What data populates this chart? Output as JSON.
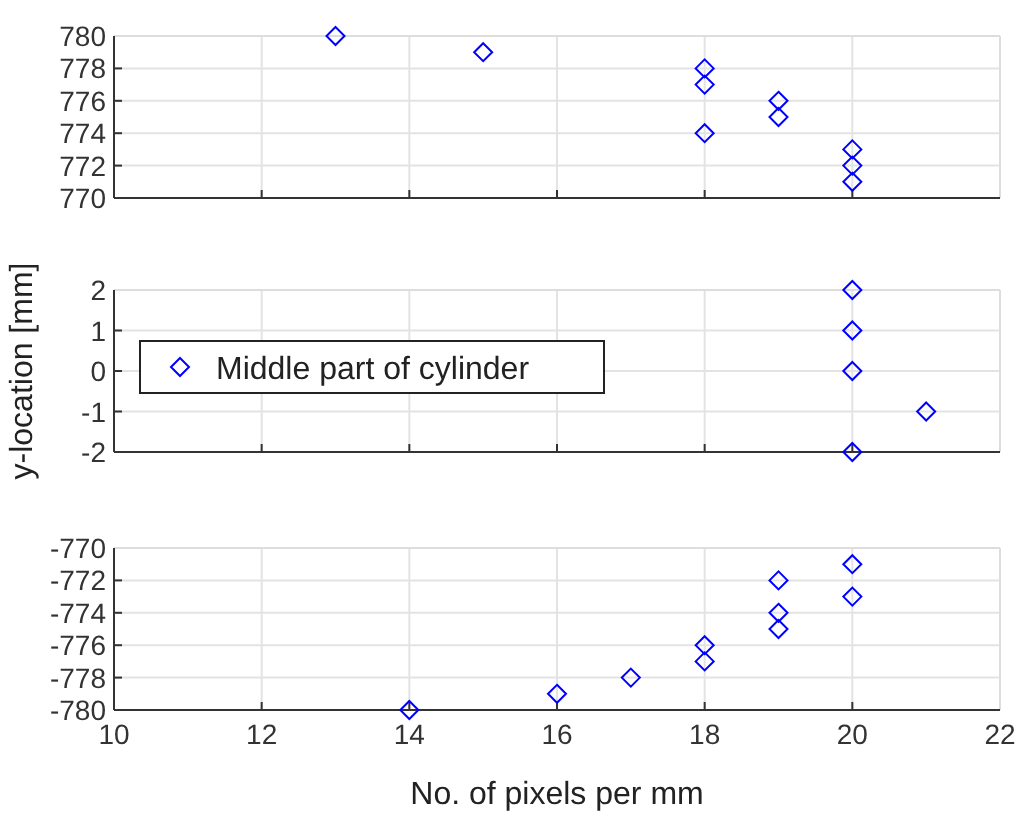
{
  "chart_data": [
    {
      "type": "scatter",
      "x": [
        13,
        15,
        18,
        18,
        18,
        19,
        19,
        20,
        20,
        20
      ],
      "series": [
        {
          "color": "#0000ff",
          "values": [
            780,
            779,
            778,
            777,
            774,
            776,
            775,
            773,
            772,
            771
          ]
        }
      ],
      "xlim": [
        10,
        22
      ],
      "xticks": [
        10,
        12,
        14,
        16,
        18,
        20,
        22
      ],
      "ylim": [
        770,
        780
      ],
      "yticks": [
        770,
        772,
        774,
        776,
        778,
        780
      ],
      "grid": true,
      "marker": "diamond",
      "tick_labels": "y"
    },
    {
      "type": "scatter",
      "x": [
        20,
        20,
        20,
        21,
        20
      ],
      "series": [
        {
          "name": "Middle part of cylinder",
          "color": "#0000ff",
          "values": [
            2,
            1,
            0,
            -1,
            -2
          ]
        }
      ],
      "xlim": [
        10,
        22
      ],
      "xticks": [
        10,
        12,
        14,
        16,
        18,
        20,
        22
      ],
      "ylim": [
        -2,
        2
      ],
      "yticks": [
        -2,
        -1,
        0,
        1,
        2
      ],
      "ylabel": "y-location [mm]",
      "grid": true,
      "marker": "diamond",
      "legend": "left",
      "tick_labels": "y"
    },
    {
      "type": "scatter",
      "x": [
        14,
        16,
        17,
        18,
        18,
        19,
        19,
        19,
        20,
        20
      ],
      "series": [
        {
          "color": "#0000ff",
          "values": [
            -780,
            -779,
            -778,
            -776,
            -777,
            -772,
            -774,
            -775,
            -771,
            -773
          ]
        }
      ],
      "xlim": [
        10,
        22
      ],
      "xticks": [
        10,
        12,
        14,
        16,
        18,
        20,
        22
      ],
      "ylim": [
        -780,
        -770
      ],
      "yticks": [
        -780,
        -778,
        -776,
        -774,
        -772,
        -770
      ],
      "xlabel": "No. of pixels per mm",
      "grid": true,
      "marker": "diamond"
    }
  ]
}
